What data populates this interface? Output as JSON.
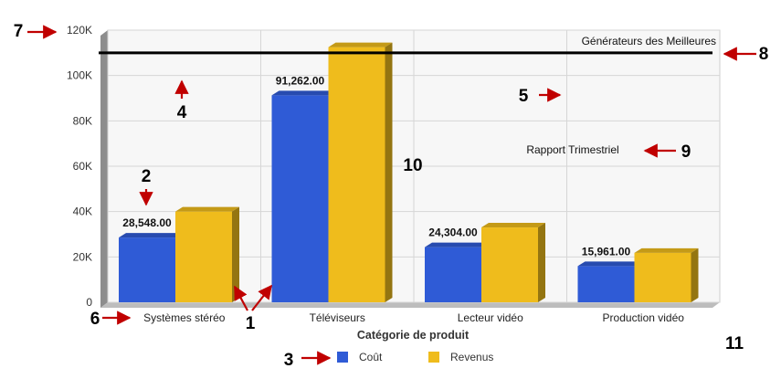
{
  "chart_data": {
    "type": "bar",
    "categories": [
      "Systèmes stéréo",
      "Téléviseurs",
      "Lecteur vidéo",
      "Production vidéo"
    ],
    "series": [
      {
        "name": "Coût",
        "values": [
          28548,
          91262,
          24304,
          15961
        ],
        "color": "#2f5bd6",
        "data_labels": [
          "28,548.00",
          "91,262.00",
          "24,304.00",
          "15,961.00"
        ]
      },
      {
        "name": "Revenus",
        "values": [
          40000,
          112500,
          33000,
          21800
        ],
        "color": "#efbc1c"
      }
    ],
    "xlabel": "Catégorie de produit",
    "ylabel": "",
    "ylim": [
      0,
      120000
    ],
    "yticks": [
      "0",
      "20K",
      "40K",
      "60K",
      "80K",
      "100K",
      "120K"
    ],
    "grid": true,
    "legend_position": "bottom",
    "reference_line": {
      "value": 110000,
      "color": "#000000",
      "label": "Générateurs des Meilleures"
    },
    "annotations": [
      "Rapport Trimestriel",
      "10"
    ]
  },
  "callouts": [
    "1",
    "2",
    "3",
    "4",
    "5",
    "6",
    "7",
    "8",
    "9",
    "11"
  ],
  "colors": {
    "arrow": "#c00000",
    "grid": "#d6d6d6",
    "plot_bg": "#f7f7f7"
  }
}
